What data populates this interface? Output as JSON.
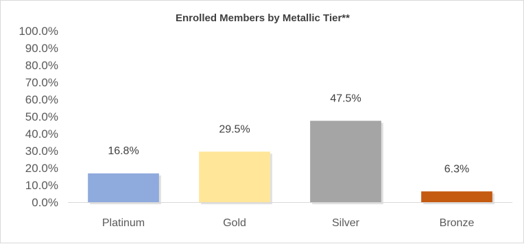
{
  "chart_data": {
    "type": "bar",
    "title": "Enrolled Members by Metallic Tier**",
    "xlabel": "",
    "ylabel": "",
    "categories": [
      "Platinum",
      "Gold",
      "Silver",
      "Bronze"
    ],
    "values": [
      16.8,
      29.5,
      47.5,
      6.3
    ],
    "value_labels": [
      "16.8%",
      "29.5%",
      "47.5%",
      "6.3%"
    ],
    "colors": [
      "#8faadc",
      "#ffe699",
      "#a5a5a5",
      "#c55a11"
    ],
    "ylim": [
      0,
      100
    ],
    "y_ticks": [
      0,
      10,
      20,
      30,
      40,
      50,
      60,
      70,
      80,
      90,
      100
    ],
    "y_tick_labels": [
      "0.0%",
      "10.0%",
      "20.0%",
      "30.0%",
      "40.0%",
      "50.0%",
      "60.0%",
      "70.0%",
      "80.0%",
      "90.0%",
      "100.0%"
    ],
    "grid": false,
    "legend": "none"
  }
}
